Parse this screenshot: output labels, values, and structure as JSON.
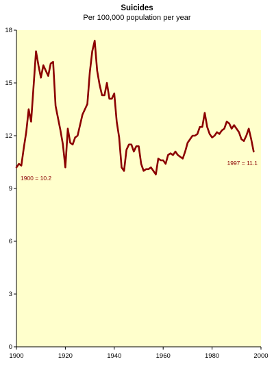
{
  "chart_data": {
    "type": "line",
    "title": "Suicides",
    "subtitle": "Per 100,000 population per year",
    "xlabel": "",
    "ylabel": "",
    "xlim": [
      1900,
      2000
    ],
    "ylim": [
      0,
      18
    ],
    "x_ticks": [
      "1900",
      "1920",
      "1940",
      "1960",
      "1980",
      "2000"
    ],
    "y_ticks": [
      "0",
      "3",
      "6",
      "9",
      "12",
      "15",
      "18"
    ],
    "grid": false,
    "colors": {
      "line": "#8b0000",
      "plot_bg": "#ffffcc",
      "axis": "#000000"
    },
    "annotations": [
      {
        "text": "1900 = 10.2",
        "x": 1900,
        "y": 10.2
      },
      {
        "text": "1997 = 11.1",
        "x": 1997,
        "y": 11.1
      }
    ],
    "series": [
      {
        "x": [
          1900,
          1901,
          1902,
          1903,
          1904,
          1905,
          1906,
          1907,
          1908,
          1909,
          1910,
          1911,
          1912,
          1913,
          1914,
          1915,
          1916,
          1917,
          1918,
          1919,
          1920,
          1921,
          1922,
          1923,
          1924,
          1925,
          1926,
          1927,
          1928,
          1929,
          1930,
          1931,
          1932,
          1933,
          1934,
          1935,
          1936,
          1937,
          1938,
          1939,
          1940,
          1941,
          1942,
          1943,
          1944,
          1945,
          1946,
          1947,
          1948,
          1949,
          1950,
          1951,
          1952,
          1953,
          1954,
          1955,
          1956,
          1957,
          1958,
          1959,
          1960,
          1961,
          1962,
          1963,
          1964,
          1965,
          1966,
          1967,
          1968,
          1969,
          1970,
          1971,
          1972,
          1973,
          1974,
          1975,
          1976,
          1977,
          1978,
          1979,
          1980,
          1981,
          1982,
          1983,
          1984,
          1985,
          1986,
          1987,
          1988,
          1989,
          1990,
          1991,
          1992,
          1993,
          1994,
          1995,
          1996,
          1997
        ],
        "values": [
          10.2,
          10.4,
          10.3,
          11.3,
          12.2,
          13.5,
          12.8,
          14.8,
          16.8,
          16.0,
          15.3,
          16.0,
          15.7,
          15.4,
          16.1,
          16.2,
          13.7,
          13.0,
          12.3,
          11.5,
          10.2,
          12.4,
          11.6,
          11.5,
          11.9,
          12.0,
          12.6,
          13.2,
          13.5,
          13.8,
          15.6,
          16.8,
          17.4,
          15.7,
          14.9,
          14.3,
          14.3,
          15.0,
          14.1,
          14.1,
          14.4,
          12.8,
          11.9,
          10.2,
          10.0,
          11.2,
          11.5,
          11.5,
          11.1,
          11.4,
          11.4,
          10.4,
          10.0,
          10.1,
          10.1,
          10.2,
          10.0,
          9.8,
          10.7,
          10.6,
          10.6,
          10.4,
          10.9,
          11.0,
          10.9,
          11.1,
          10.9,
          10.8,
          10.7,
          11.1,
          11.6,
          11.8,
          12.0,
          12.0,
          12.1,
          12.5,
          12.5,
          13.3,
          12.5,
          12.1,
          11.9,
          12.0,
          12.2,
          12.1,
          12.3,
          12.4,
          12.8,
          12.7,
          12.4,
          12.6,
          12.4,
          12.2,
          11.8,
          11.7,
          12.0,
          12.4,
          11.8,
          11.1
        ]
      }
    ]
  }
}
